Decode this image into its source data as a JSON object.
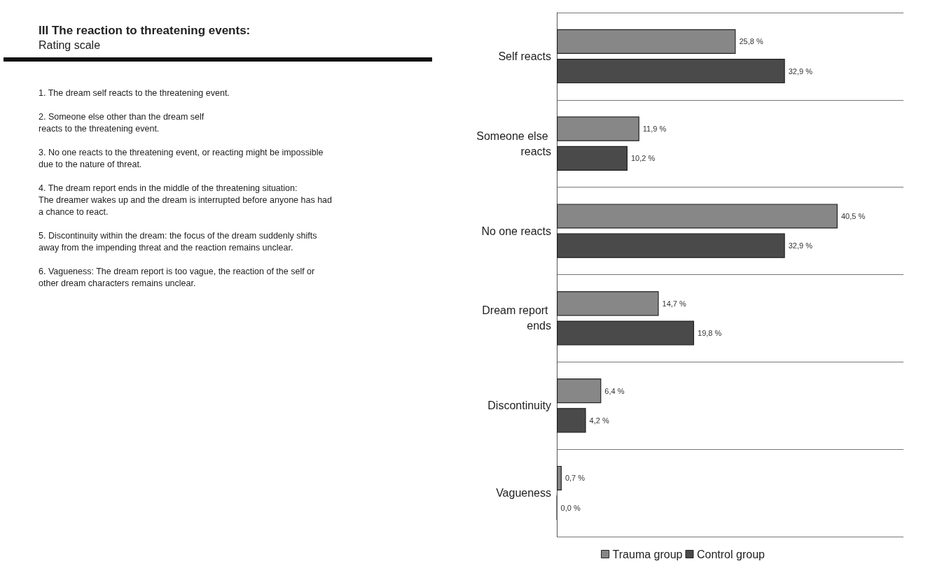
{
  "chart_data": {
    "type": "bar",
    "orientation": "horizontal",
    "title": "III  The reaction to threatening events:",
    "subtitle": "Rating scale",
    "annotations": [
      "1. The dream self reacts to the threatening event.",
      "2. Someone else other than the dream self\nreacts to the threatening event.",
      "3. No one reacts to the threatening event, or reacting might be impossible\ndue to the nature of threat.",
      "4. The dream report ends in the middle of the threatening situation:\nThe dreamer wakes up and the dream is interrupted before anyone has had\na chance to react.",
      "5. Discontinuity within the dream: the focus of the dream suddenly shifts\naway from the impending threat and the reaction remains unclear.",
      "6. Vagueness: The dream report is too vague, the reaction of the self or\nother dream characters remains unclear."
    ],
    "categories": [
      "Self reacts",
      "Someone else reacts",
      "No one reacts",
      "Dream report ends",
      "Discontinuity",
      "Vagueness"
    ],
    "series": [
      {
        "name": "Trauma group",
        "color": "#878787",
        "values": [
          25.8,
          11.9,
          40.5,
          14.7,
          6.4,
          0.7
        ],
        "value_labels": [
          "25,8 %",
          "11,9 %",
          "40,5 %",
          "14,7 %",
          "6,4 %",
          "0,7 %"
        ]
      },
      {
        "name": "Control group",
        "color": "#4a4a4a",
        "values": [
          32.9,
          10.2,
          32.9,
          19.8,
          4.2,
          0.0
        ],
        "value_labels": [
          "32,9 %",
          "10,2 %",
          "32,9 %",
          "19,8 %",
          "4,2 %",
          "0,0 %"
        ]
      }
    ],
    "xlim": [
      0,
      50
    ],
    "grid": "y",
    "legend": "bottom"
  }
}
